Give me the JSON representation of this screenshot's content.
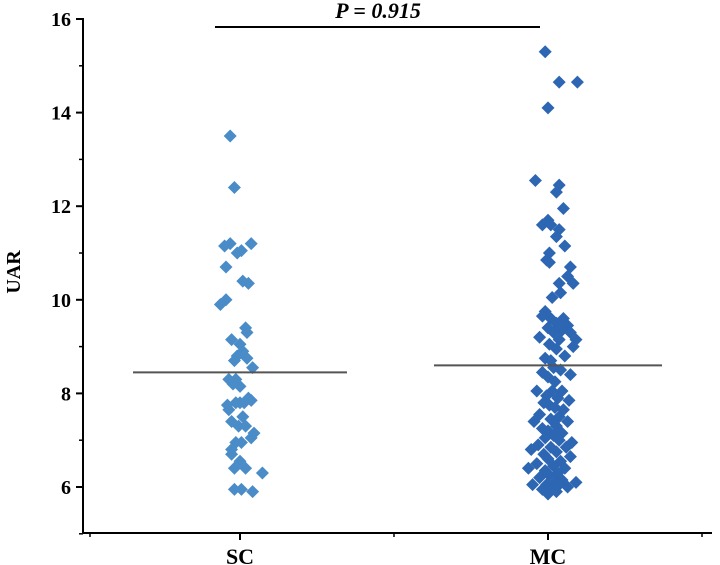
{
  "chart_data": {
    "type": "scatter",
    "title": "",
    "xlabel": "",
    "ylabel": "UAR",
    "ylim": [
      5,
      16
    ],
    "yticks": [
      6,
      8,
      10,
      12,
      14,
      16
    ],
    "yticks_labels": [
      "6",
      "8",
      "10",
      "12",
      "14",
      "16"
    ],
    "categories": [
      "SC",
      "MC"
    ],
    "annotation": "P = 0.915",
    "series": [
      {
        "name": "SC",
        "color": "#4a8cc8",
        "mean": 8.45,
        "points": [
          {
            "jitter": -0.35,
            "value": 13.5
          },
          {
            "jitter": -0.2,
            "value": 12.4
          },
          {
            "jitter": -0.55,
            "value": 11.15
          },
          {
            "jitter": -0.35,
            "value": 11.2
          },
          {
            "jitter": -0.1,
            "value": 11.0
          },
          {
            "jitter": 0.05,
            "value": 11.05
          },
          {
            "jitter": 0.4,
            "value": 11.2
          },
          {
            "jitter": -0.5,
            "value": 10.7
          },
          {
            "jitter": 0.1,
            "value": 10.4
          },
          {
            "jitter": 0.3,
            "value": 10.35
          },
          {
            "jitter": -0.7,
            "value": 9.9
          },
          {
            "jitter": -0.5,
            "value": 10.0
          },
          {
            "jitter": 0.2,
            "value": 9.4
          },
          {
            "jitter": 0.25,
            "value": 9.3
          },
          {
            "jitter": -0.3,
            "value": 9.15
          },
          {
            "jitter": 0.0,
            "value": 9.05
          },
          {
            "jitter": 0.1,
            "value": 8.9
          },
          {
            "jitter": -0.1,
            "value": 8.8
          },
          {
            "jitter": 0.25,
            "value": 8.75
          },
          {
            "jitter": -0.2,
            "value": 8.7
          },
          {
            "jitter": 0.45,
            "value": 8.55
          },
          {
            "jitter": -0.4,
            "value": 8.3
          },
          {
            "jitter": -0.15,
            "value": 8.3
          },
          {
            "jitter": -0.25,
            "value": 8.2
          },
          {
            "jitter": 0.0,
            "value": 8.15
          },
          {
            "jitter": 0.3,
            "value": 7.9
          },
          {
            "jitter": 0.15,
            "value": 7.8
          },
          {
            "jitter": -0.15,
            "value": 7.8
          },
          {
            "jitter": 0.0,
            "value": 7.8
          },
          {
            "jitter": -0.45,
            "value": 7.75
          },
          {
            "jitter": 0.4,
            "value": 7.85
          },
          {
            "jitter": -0.4,
            "value": 7.65
          },
          {
            "jitter": 0.1,
            "value": 7.5
          },
          {
            "jitter": -0.3,
            "value": 7.4
          },
          {
            "jitter": -0.05,
            "value": 7.3
          },
          {
            "jitter": 0.2,
            "value": 7.3
          },
          {
            "jitter": 0.5,
            "value": 7.15
          },
          {
            "jitter": 0.4,
            "value": 7.05
          },
          {
            "jitter": -0.15,
            "value": 6.95
          },
          {
            "jitter": 0.05,
            "value": 6.95
          },
          {
            "jitter": -0.3,
            "value": 6.8
          },
          {
            "jitter": -0.3,
            "value": 6.7
          },
          {
            "jitter": 0.0,
            "value": 6.55
          },
          {
            "jitter": -0.2,
            "value": 6.4
          },
          {
            "jitter": 0.2,
            "value": 6.4
          },
          {
            "jitter": 0.8,
            "value": 6.3
          },
          {
            "jitter": -0.2,
            "value": 5.95
          },
          {
            "jitter": 0.05,
            "value": 5.95
          },
          {
            "jitter": 0.45,
            "value": 5.9
          }
        ]
      },
      {
        "name": "MC",
        "color": "#2d66b2",
        "mean": 8.6,
        "points": [
          {
            "jitter": -0.1,
            "value": 15.3
          },
          {
            "jitter": 0.4,
            "value": 14.65
          },
          {
            "jitter": 1.05,
            "value": 14.65
          },
          {
            "jitter": 0.0,
            "value": 14.1
          },
          {
            "jitter": -0.45,
            "value": 12.55
          },
          {
            "jitter": 0.4,
            "value": 12.45
          },
          {
            "jitter": 0.3,
            "value": 12.3
          },
          {
            "jitter": 0.55,
            "value": 11.95
          },
          {
            "jitter": 0.0,
            "value": 11.7
          },
          {
            "jitter": -0.2,
            "value": 11.6
          },
          {
            "jitter": 0.1,
            "value": 11.6
          },
          {
            "jitter": 0.4,
            "value": 11.5
          },
          {
            "jitter": 0.3,
            "value": 11.35
          },
          {
            "jitter": 0.6,
            "value": 11.15
          },
          {
            "jitter": 0.05,
            "value": 11.0
          },
          {
            "jitter": -0.05,
            "value": 10.85
          },
          {
            "jitter": 0.05,
            "value": 10.8
          },
          {
            "jitter": 0.8,
            "value": 10.7
          },
          {
            "jitter": 0.7,
            "value": 10.5
          },
          {
            "jitter": 0.4,
            "value": 10.35
          },
          {
            "jitter": 0.9,
            "value": 10.35
          },
          {
            "jitter": 0.45,
            "value": 10.15
          },
          {
            "jitter": 0.15,
            "value": 10.05
          },
          {
            "jitter": -0.1,
            "value": 9.75
          },
          {
            "jitter": -0.2,
            "value": 9.65
          },
          {
            "jitter": 0.1,
            "value": 9.6
          },
          {
            "jitter": 0.55,
            "value": 9.6
          },
          {
            "jitter": 0.3,
            "value": 9.5
          },
          {
            "jitter": 0.7,
            "value": 9.45
          },
          {
            "jitter": 0.0,
            "value": 9.4
          },
          {
            "jitter": 0.5,
            "value": 9.35
          },
          {
            "jitter": 0.2,
            "value": 9.3
          },
          {
            "jitter": 0.8,
            "value": 9.3
          },
          {
            "jitter": -0.3,
            "value": 9.2
          },
          {
            "jitter": 0.4,
            "value": 9.15
          },
          {
            "jitter": 1.0,
            "value": 9.15
          },
          {
            "jitter": 0.05,
            "value": 9.05
          },
          {
            "jitter": 0.9,
            "value": 9.0
          },
          {
            "jitter": 0.3,
            "value": 8.95
          },
          {
            "jitter": 0.6,
            "value": 8.8
          },
          {
            "jitter": -0.1,
            "value": 8.75
          },
          {
            "jitter": 0.1,
            "value": 8.7
          },
          {
            "jitter": 0.2,
            "value": 8.55
          },
          {
            "jitter": 0.45,
            "value": 8.5
          },
          {
            "jitter": -0.2,
            "value": 8.45
          },
          {
            "jitter": 0.0,
            "value": 8.35
          },
          {
            "jitter": 0.8,
            "value": 8.4
          },
          {
            "jitter": 0.25,
            "value": 8.25
          },
          {
            "jitter": -0.4,
            "value": 8.05
          },
          {
            "jitter": 0.15,
            "value": 8.05
          },
          {
            "jitter": 0.5,
            "value": 8.05
          },
          {
            "jitter": -0.05,
            "value": 7.95
          },
          {
            "jitter": 0.35,
            "value": 7.9
          },
          {
            "jitter": 0.75,
            "value": 7.85
          },
          {
            "jitter": -0.15,
            "value": 7.8
          },
          {
            "jitter": 0.05,
            "value": 7.75
          },
          {
            "jitter": 0.25,
            "value": 7.7
          },
          {
            "jitter": 0.55,
            "value": 7.65
          },
          {
            "jitter": -0.3,
            "value": 7.55
          },
          {
            "jitter": 0.4,
            "value": 7.5
          },
          {
            "jitter": 0.1,
            "value": 7.45
          },
          {
            "jitter": -0.5,
            "value": 7.4
          },
          {
            "jitter": 0.7,
            "value": 7.4
          },
          {
            "jitter": 0.3,
            "value": 7.3
          },
          {
            "jitter": -0.2,
            "value": 7.25
          },
          {
            "jitter": 0.0,
            "value": 7.2
          },
          {
            "jitter": 0.5,
            "value": 7.15
          },
          {
            "jitter": 0.2,
            "value": 7.1
          },
          {
            "jitter": -0.1,
            "value": 7.05
          },
          {
            "jitter": 0.4,
            "value": 7.0
          },
          {
            "jitter": 0.85,
            "value": 6.95
          },
          {
            "jitter": -0.35,
            "value": 6.9
          },
          {
            "jitter": 0.1,
            "value": 6.85
          },
          {
            "jitter": 0.65,
            "value": 6.85
          },
          {
            "jitter": -0.6,
            "value": 6.8
          },
          {
            "jitter": 0.3,
            "value": 6.75
          },
          {
            "jitter": -0.15,
            "value": 6.7
          },
          {
            "jitter": 0.8,
            "value": 6.65
          },
          {
            "jitter": 0.0,
            "value": 6.6
          },
          {
            "jitter": 0.45,
            "value": 6.55
          },
          {
            "jitter": -0.4,
            "value": 6.5
          },
          {
            "jitter": 0.2,
            "value": 6.45
          },
          {
            "jitter": -0.7,
            "value": 6.4
          },
          {
            "jitter": 0.6,
            "value": 6.4
          },
          {
            "jitter": -0.1,
            "value": 6.35
          },
          {
            "jitter": 0.35,
            "value": 6.3
          },
          {
            "jitter": 0.05,
            "value": 6.25
          },
          {
            "jitter": -0.3,
            "value": 6.2
          },
          {
            "jitter": 0.5,
            "value": 6.15
          },
          {
            "jitter": 0.25,
            "value": 6.1
          },
          {
            "jitter": 1.0,
            "value": 6.1
          },
          {
            "jitter": -0.55,
            "value": 6.05
          },
          {
            "jitter": -0.05,
            "value": 6.05
          },
          {
            "jitter": 0.4,
            "value": 6.05
          },
          {
            "jitter": 0.15,
            "value": 6.0
          },
          {
            "jitter": 0.7,
            "value": 6.0
          },
          {
            "jitter": -0.2,
            "value": 5.95
          },
          {
            "jitter": 0.3,
            "value": 5.9
          },
          {
            "jitter": 0.0,
            "value": 5.85
          }
        ]
      }
    ]
  }
}
